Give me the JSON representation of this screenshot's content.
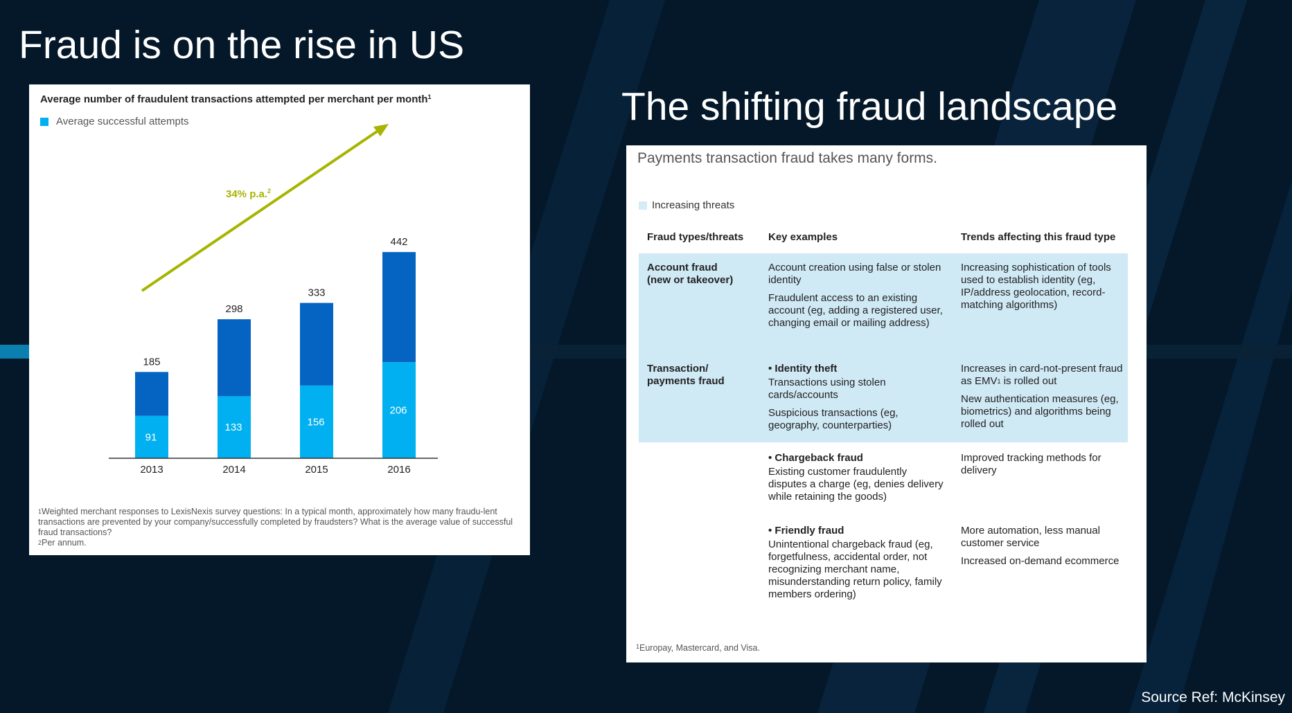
{
  "slide": {
    "title_left": "Fraud is on the rise in US",
    "title_right": "The shifting fraud landscape",
    "source": "Source Ref: McKinsey"
  },
  "colors": {
    "background": "#04182a",
    "dark_bar": "#0563c1",
    "light_bar": "#00b0f0",
    "arrow": "#a8b400",
    "threat_band": "#cfe9f5"
  },
  "chart_data": {
    "type": "bar",
    "title": "Average number of fraudulent transactions attempted per merchant per month",
    "title_superscript": "1",
    "categories": [
      "2013",
      "2014",
      "2015",
      "2016"
    ],
    "series": [
      {
        "name": "Average successful attempts",
        "values": [
          91,
          133,
          156,
          206
        ]
      },
      {
        "values": [
          94,
          165,
          177,
          236
        ]
      }
    ],
    "totals": [
      185,
      298,
      333,
      442
    ],
    "stacked": true,
    "ylim": [
      0,
      460
    ],
    "trend_annotation": "34% p.a.",
    "trend_superscript": "2",
    "footnotes": [
      "Weighted merchant responses to LexisNexis survey questions: In a typical month, approximately how many fraudu-lent transactions are prevented by your company/successfully completed by fraudsters? What is the average value of successful fraud transactions?",
      "Per annum."
    ],
    "footnote_marks": [
      "1",
      "2"
    ]
  },
  "table": {
    "intro": "Payments transaction fraud takes many forms.",
    "legend": "Increasing threats",
    "headers": [
      "Fraud types/threats",
      "Key examples",
      "Trends affecting this fraud type"
    ],
    "rows": [
      {
        "type_lines": [
          "Account fraud",
          "(new or takeover)"
        ],
        "examples": [
          "Account creation using false or stolen identity",
          "Fraudulent access to an existing account (eg, adding a registered user, changing email or mailing address)"
        ],
        "trends": [
          "Increasing sophistication of tools used to establish identity (eg, IP/address geolocation, record-matching algorithms)"
        ]
      },
      {
        "type_lines": [
          "Transaction/",
          "payments fraud"
        ],
        "heading": "• Identity theft",
        "examples": [
          "Transactions using stolen cards/accounts",
          "Suspicious transactions (eg, geography, counterparties)"
        ],
        "trends_pre": "Increases in card-not-present fraud as EMV",
        "trends_sup": "1",
        "trends_post": " is rolled out",
        "trends2": "New authentication measures (eg, biometrics) and algorithms being rolled out"
      },
      {
        "heading": "• Chargeback fraud",
        "examples": [
          "Existing customer fraudulently disputes a charge (eg, denies delivery while retaining the goods)"
        ],
        "trends": [
          "Improved tracking methods for delivery"
        ]
      },
      {
        "heading": "• Friendly fraud",
        "examples": [
          "Unintentional chargeback fraud (eg, forgetfulness, accidental order, not recognizing merchant name, misunderstanding return policy, family members ordering)"
        ],
        "trends": [
          "More automation, less manual customer service",
          "Increased on-demand ecommerce"
        ]
      }
    ],
    "footnote_mark": "1",
    "footnote": "Europay, Mastercard, and Visa."
  }
}
